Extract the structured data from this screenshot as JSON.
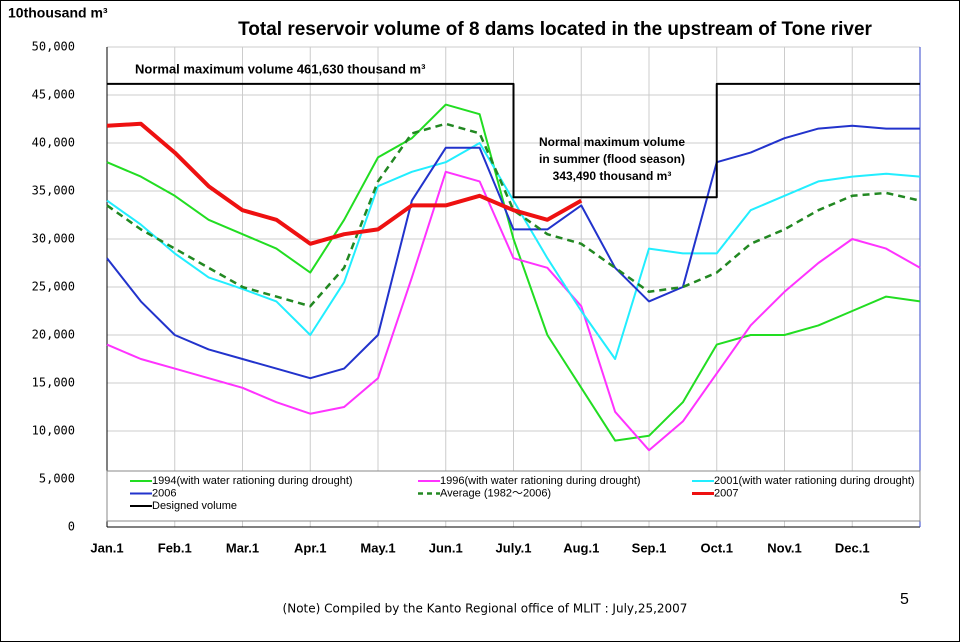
{
  "chart_data": {
    "type": "line",
    "title": "Total reservoir volume of 8 dams located in the upstream of Tone river",
    "y_label": "10thousand m³",
    "annotation": "Normal maximum volume  461,630 thousand m³",
    "summer_annotation": [
      "Normal maximum volume",
      "in summer (flood season)",
      "343,490 thousand m³"
    ],
    "note": "(Note) Compiled by the Kanto Regional office of MLIT : July,25,2007",
    "page_number": "5",
    "categories": [
      "Jan.1",
      null,
      "Feb.1",
      null,
      "Mar.1",
      null,
      "Apr.1",
      null,
      "May.1",
      null,
      "Jun.1",
      null,
      "July.1",
      null,
      "Aug.1",
      null,
      "Sep.1",
      null,
      "Oct.1",
      null,
      "Nov.1",
      null,
      "Dec.1",
      null,
      null
    ],
    "ylim": [
      0,
      50000
    ],
    "yticks": [
      0,
      {
        "value": 5000,
        "label": "5,000"
      },
      {
        "value": 10000,
        "label": "10,000"
      },
      {
        "value": 15000,
        "label": "15,000"
      },
      {
        "value": 20000,
        "label": "20,000"
      },
      {
        "value": 25000,
        "label": "25,000"
      },
      {
        "value": 30000,
        "label": "30,000"
      },
      {
        "value": 35000,
        "label": "35,000"
      },
      {
        "value": 40000,
        "label": "40,000"
      },
      {
        "value": 45000,
        "label": "45,000"
      },
      {
        "value": 50000,
        "label": "50,000"
      }
    ],
    "grid": true,
    "series": [
      {
        "name": "1994(with water rationing during drought)",
        "color": "#22dd22",
        "width": 2,
        "values": [
          38000,
          36500,
          34500,
          32000,
          30500,
          29000,
          26500,
          32000,
          38500,
          40500,
          44000,
          43000,
          30000,
          20000,
          14500,
          9000,
          9500,
          13000,
          19000,
          20000,
          20000,
          21000,
          22500,
          24000,
          23500
        ]
      },
      {
        "name": "1996(with water rationing during drought)",
        "color": "#ff33ff",
        "width": 2,
        "values": [
          19000,
          17500,
          16500,
          15500,
          14500,
          13000,
          11800,
          12500,
          15500,
          26000,
          37000,
          36000,
          28000,
          27000,
          23000,
          12000,
          8000,
          11000,
          16000,
          21000,
          24500,
          27500,
          30000,
          29000,
          27000
        ]
      },
      {
        "name": "2001(with water rationing during drought)",
        "color": "#22eeff",
        "width": 2,
        "values": [
          34000,
          31500,
          28500,
          26000,
          24800,
          23500,
          20000,
          25500,
          35500,
          37000,
          38000,
          40000,
          34000,
          28000,
          22500,
          17500,
          29000,
          28500,
          28500,
          33000,
          34500,
          36000,
          36500,
          36800,
          36500
        ]
      },
      {
        "name": "2006",
        "color": "#2233cc",
        "width": 2,
        "values": [
          28000,
          23500,
          20000,
          18500,
          17500,
          16500,
          15500,
          16500,
          20000,
          34000,
          39500,
          39500,
          31000,
          31000,
          33500,
          27000,
          23500,
          25000,
          38000,
          39000,
          40500,
          41500,
          41800,
          41500,
          41500
        ]
      },
      {
        "name": "Average (1982～2006)",
        "color": "#228822",
        "width": 2.5,
        "dashed": true,
        "values": [
          33500,
          31000,
          29000,
          27000,
          25000,
          24000,
          23000,
          27000,
          36000,
          41000,
          42000,
          41000,
          33000,
          30500,
          29500,
          27000,
          24500,
          25000,
          26500,
          29500,
          31000,
          33000,
          34500,
          34800,
          34000
        ]
      },
      {
        "name": "2007",
        "color": "#ee1111",
        "width": 4,
        "values": [
          41800,
          42000,
          39000,
          35500,
          33000,
          32000,
          29500,
          30500,
          31000,
          33500,
          33500,
          34500,
          33000,
          32000,
          34000,
          null,
          null,
          null,
          null,
          null,
          null,
          null,
          null,
          null,
          null
        ]
      },
      {
        "name": "Designed volume",
        "color": "#000000",
        "width": 2,
        "step": true,
        "values": [
          46163,
          46163,
          46163,
          46163,
          46163,
          46163,
          46163,
          46163,
          46163,
          46163,
          46163,
          46163,
          34349,
          34349,
          34349,
          34349,
          34349,
          34349,
          46163,
          46163,
          46163,
          46163,
          46163,
          46163,
          46163
        ]
      }
    ]
  }
}
